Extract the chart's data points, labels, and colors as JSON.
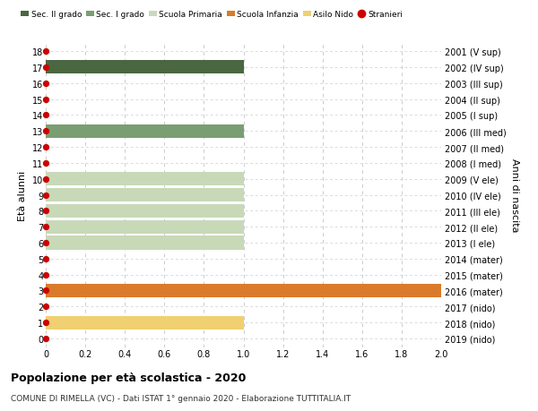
{
  "ages": [
    18,
    17,
    16,
    15,
    14,
    13,
    12,
    11,
    10,
    9,
    8,
    7,
    6,
    5,
    4,
    3,
    2,
    1,
    0
  ],
  "right_labels": [
    "2001 (V sup)",
    "2002 (IV sup)",
    "2003 (III sup)",
    "2004 (II sup)",
    "2005 (I sup)",
    "2006 (III med)",
    "2007 (II med)",
    "2008 (I med)",
    "2009 (V ele)",
    "2010 (IV ele)",
    "2011 (III ele)",
    "2012 (II ele)",
    "2013 (I ele)",
    "2014 (mater)",
    "2015 (mater)",
    "2016 (mater)",
    "2017 (nido)",
    "2018 (nido)",
    "2019 (nido)"
  ],
  "bars": [
    {
      "age": 17,
      "value": 1.0,
      "color": "#4a6741"
    },
    {
      "age": 13,
      "value": 1.0,
      "color": "#7a9e72"
    },
    {
      "age": 10,
      "value": 1.0,
      "color": "#c8d9b8"
    },
    {
      "age": 9,
      "value": 1.0,
      "color": "#c8d9b8"
    },
    {
      "age": 8,
      "value": 1.0,
      "color": "#c8d9b8"
    },
    {
      "age": 7,
      "value": 1.0,
      "color": "#c8d9b8"
    },
    {
      "age": 6,
      "value": 1.0,
      "color": "#c8d9b8"
    },
    {
      "age": 3,
      "value": 2.0,
      "color": "#d97b2a"
    },
    {
      "age": 1,
      "value": 1.0,
      "color": "#f0d070"
    }
  ],
  "stranieri_dots": [
    18,
    17,
    16,
    15,
    14,
    13,
    12,
    11,
    10,
    9,
    8,
    7,
    6,
    5,
    4,
    3,
    2,
    1,
    0
  ],
  "legend_items": [
    {
      "label": "Sec. II grado",
      "color": "#4a6741",
      "type": "patch"
    },
    {
      "label": "Sec. I grado",
      "color": "#7a9e72",
      "type": "patch"
    },
    {
      "label": "Scuola Primaria",
      "color": "#c8d9b8",
      "type": "patch"
    },
    {
      "label": "Scuola Infanzia",
      "color": "#d97b2a",
      "type": "patch"
    },
    {
      "label": "Asilo Nido",
      "color": "#f0d070",
      "type": "patch"
    },
    {
      "label": "Stranieri",
      "color": "#cc0000",
      "type": "dot"
    }
  ],
  "xlim": [
    0,
    2.0
  ],
  "xticks": [
    0,
    0.2,
    0.4,
    0.6,
    0.8,
    1.0,
    1.2,
    1.4,
    1.6,
    1.8,
    2.0
  ],
  "xtick_labels": [
    "0",
    "0.2",
    "0.4",
    "0.6",
    "0.8",
    "1.0",
    "1.2",
    "1.4",
    "1.6",
    "1.8",
    "2.0"
  ],
  "ylabel_left": "Età alunni",
  "ylabel_right": "Anni di nascita",
  "title": "Popolazione per età scolastica - 2020",
  "subtitle": "COMUNE DI RIMELLA (VC) - Dati ISTAT 1° gennaio 2020 - Elaborazione TUTTITALIA.IT",
  "bar_height": 0.85,
  "background_color": "#ffffff",
  "grid_color": "#cccccc",
  "stranieri_color": "#cc0000",
  "stranieri_size": 18,
  "ylim_bottom": -0.55,
  "ylim_top": 18.55
}
